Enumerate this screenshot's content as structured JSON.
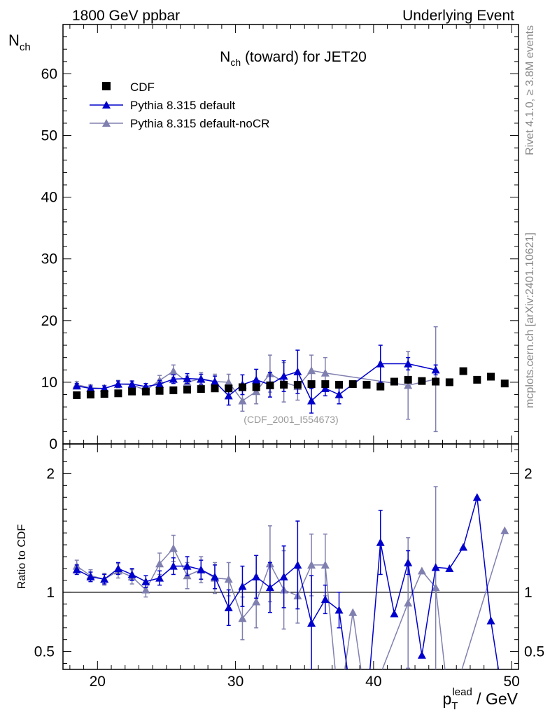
{
  "chart_data": {
    "type": "scatter",
    "header_left": "1800 GeV ppbar",
    "header_right": "Underlying Event",
    "title": {
      "main": "N",
      "sub": "ch",
      "rest": " (toward) for JET20"
    },
    "ylabel": {
      "main": "N",
      "sub": "ch"
    },
    "ratio_ylabel": "Ratio to CDF",
    "xlabel": {
      "p": "p",
      "sub": "T",
      "sup": "lead",
      "rest": " / GeV"
    },
    "side_text_top": "Rivet 4.1.0, ≥ 3.8M events",
    "side_text_bottom": "mcplots.cern.ch [arXiv:2401.10621]",
    "reference": "(CDF_2001_I554673)",
    "xlim": [
      17.5,
      50.5
    ],
    "ylim": [
      0,
      68
    ],
    "ratio_ylim": [
      0.35,
      2.25
    ],
    "x_ticks": [
      "20",
      "30",
      "40",
      "50"
    ],
    "y_ticks": [
      "0",
      "10",
      "20",
      "30",
      "40",
      "50",
      "60"
    ],
    "ratio_ticks": [
      "0.5",
      "1",
      "2"
    ],
    "series": [
      {
        "name": "CDF",
        "color": "#000000",
        "marker": "square",
        "x": [
          18.5,
          19.5,
          20.5,
          21.5,
          22.5,
          23.5,
          24.5,
          25.5,
          26.5,
          27.5,
          28.5,
          29.5,
          30.5,
          31.5,
          32.5,
          33.5,
          34.5,
          35.5,
          36.5,
          37.5,
          38.5,
          39.5,
          40.5,
          41.5,
          42.5,
          43.5,
          44.5,
          45.5,
          46.5,
          47.5,
          48.5,
          49.5
        ],
        "y": [
          7.9,
          8.0,
          8.1,
          8.2,
          8.5,
          8.5,
          8.6,
          8.7,
          8.8,
          8.9,
          9.0,
          9.0,
          9.2,
          9.2,
          9.5,
          9.6,
          9.6,
          9.7,
          9.7,
          9.6,
          9.7,
          9.6,
          9.3,
          10.1,
          10.4,
          10.2,
          10.1,
          10.0,
          11.8,
          10.4,
          10.9,
          9.8
        ]
      },
      {
        "name": "Pythia 8.315 default",
        "color": "#0000cc",
        "marker": "triangle",
        "x": [
          18.5,
          19.5,
          20.5,
          21.5,
          22.5,
          23.5,
          24.5,
          25.5,
          26.5,
          27.5,
          28.5,
          29.5,
          30.5,
          31.5,
          32.5,
          33.5,
          34.5,
          35.5,
          36.5,
          37.5,
          40.5,
          42.5,
          44.5
        ],
        "y": [
          9.4,
          9.0,
          9.0,
          9.7,
          9.7,
          9.3,
          9.7,
          10.5,
          10.6,
          10.5,
          10.1,
          7.8,
          9.6,
          10.4,
          9.6,
          11.0,
          11.7,
          7.0,
          9.0,
          8.0,
          13.0,
          13.0,
          12.0
        ],
        "err": [
          0.4,
          0.4,
          0.4,
          0.5,
          0.5,
          0.5,
          0.6,
          0.7,
          0.8,
          0.8,
          0.9,
          1.5,
          1.6,
          1.7,
          2.0,
          2.5,
          3.5,
          2.0,
          1.2,
          1.5,
          3.0,
          1.0,
          0.8
        ]
      },
      {
        "name": "Pythia 8.315 default-noCR",
        "color": "#8080b0",
        "marker": "triangle",
        "x": [
          18.5,
          19.5,
          20.5,
          21.5,
          22.5,
          23.5,
          24.5,
          25.5,
          26.5,
          27.5,
          28.5,
          29.5,
          30.5,
          31.5,
          32.5,
          33.5,
          34.5,
          35.5,
          36.5,
          42.5,
          44.5
        ],
        "y": [
          9.6,
          9.1,
          9.0,
          9.7,
          9.6,
          8.7,
          10.3,
          11.8,
          10.0,
          10.6,
          10.1,
          10.0,
          7.0,
          8.5,
          11.4,
          10.0,
          9.3,
          11.9,
          11.5,
          9.5,
          10.5
        ],
        "err": [
          0.5,
          0.5,
          0.5,
          0.6,
          0.6,
          0.6,
          0.8,
          1.0,
          1.0,
          1.0,
          1.2,
          1.3,
          1.7,
          2.0,
          3.0,
          3.2,
          2.2,
          2.5,
          2.5,
          5.5,
          8.5
        ]
      }
    ],
    "ratio_series": [
      {
        "name": "Pythia 8.315 default",
        "x": [
          18.5,
          19.5,
          20.5,
          21.5,
          22.5,
          23.5,
          24.5,
          25.5,
          26.5,
          27.5,
          28.5,
          29.5,
          30.5,
          31.5,
          32.5,
          33.5,
          34.5,
          35.5,
          36.5,
          37.5,
          38.5,
          39.5,
          40.5,
          41.5,
          42.5,
          43.5,
          44.5,
          45.5,
          46.5,
          47.5,
          48.5,
          49.5
        ],
        "y": [
          1.19,
          1.13,
          1.11,
          1.2,
          1.15,
          1.09,
          1.12,
          1.22,
          1.22,
          1.19,
          1.13,
          0.87,
          1.05,
          1.13,
          1.04,
          1.13,
          1.23,
          0.74,
          0.94,
          0.85,
          0.01,
          0.01,
          1.42,
          0.82,
          1.25,
          0.47,
          1.21,
          1.2,
          1.38,
          1.8,
          0.76,
          0.01
        ],
        "err": [
          0.04,
          0.04,
          0.04,
          0.05,
          0.05,
          0.05,
          0.06,
          0.07,
          0.08,
          0.08,
          0.1,
          0.15,
          0.17,
          0.18,
          0.21,
          0.26,
          0.37,
          0.4,
          0.12,
          0.15,
          0,
          0,
          0.27,
          0,
          0.1,
          0,
          0,
          0,
          0,
          0,
          0,
          0
        ]
      },
      {
        "name": "Pythia 8.315 default-noCR",
        "x": [
          18.5,
          19.5,
          20.5,
          21.5,
          22.5,
          23.5,
          24.5,
          25.5,
          26.5,
          27.5,
          28.5,
          29.5,
          30.5,
          31.5,
          32.5,
          33.5,
          34.5,
          35.5,
          36.5,
          37.5,
          38.5,
          39.5,
          42.5,
          43.5,
          44.5,
          45.5,
          49.5
        ],
        "y": [
          1.22,
          1.14,
          1.11,
          1.18,
          1.13,
          1.02,
          1.24,
          1.37,
          1.14,
          1.19,
          1.12,
          1.11,
          0.78,
          0.92,
          1.24,
          1.02,
          0.97,
          1.23,
          1.23,
          0.01,
          0.83,
          0.01,
          0.91,
          1.18,
          1.04,
          0.01,
          1.52
        ],
        "err": [
          0.05,
          0.05,
          0.05,
          0.06,
          0.06,
          0.06,
          0.09,
          0.11,
          0.11,
          0.11,
          0.13,
          0.14,
          0.18,
          0.22,
          0.32,
          0.33,
          0.23,
          0.26,
          0.26,
          0,
          0,
          0,
          0.55,
          0,
          0.85,
          0,
          0
        ]
      }
    ]
  }
}
